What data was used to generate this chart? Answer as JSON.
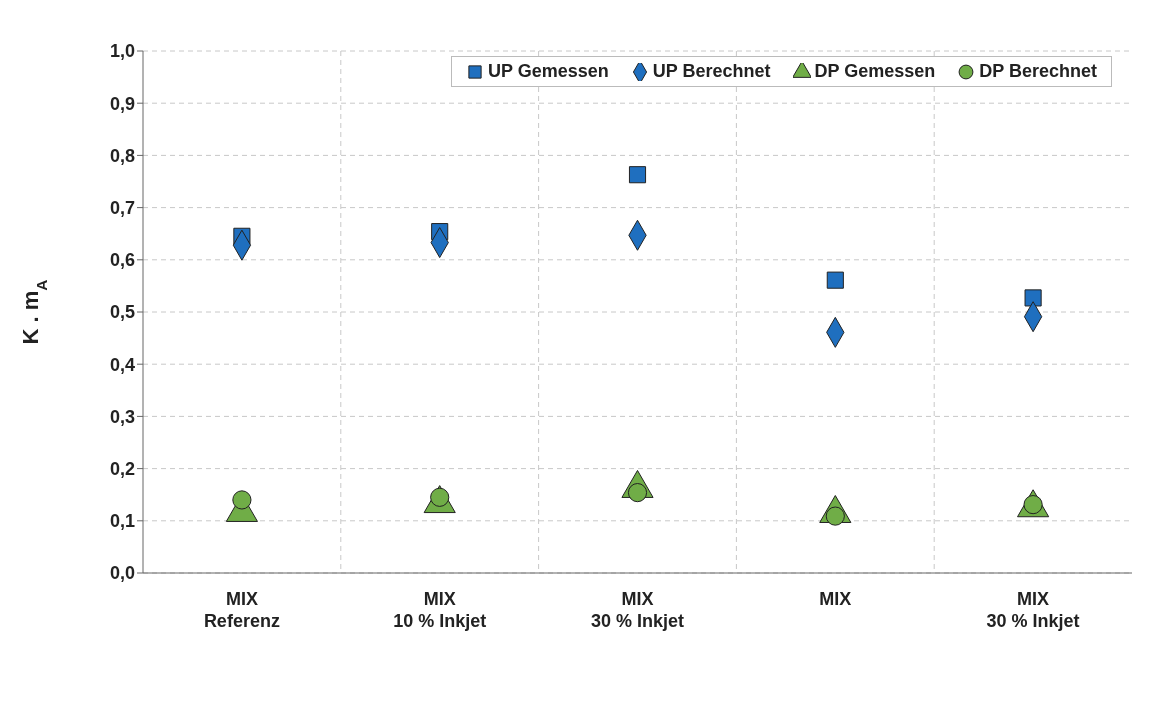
{
  "chart_data": {
    "type": "scatter",
    "ylabel": "K . m$_{A}$",
    "categories": [
      "MIX\nReferenz",
      "MIX\n10 % Inkjet",
      "MIX\n30 % Inkjet",
      "MIX",
      "MIX\n30 % Inkjet"
    ],
    "series": [
      {
        "name": "UP Gemessen",
        "color": "#1f6fbf",
        "marker": "square",
        "values": [
          0.645,
          0.654,
          0.763,
          0.561,
          0.527
        ]
      },
      {
        "name": "UP Berechnet",
        "color": "#1f6fbf",
        "marker": "diamond",
        "values": [
          0.628,
          0.633,
          0.647,
          0.461,
          0.491
        ]
      },
      {
        "name": "DP Gemessen",
        "color": "#70ad47",
        "marker": "triangle",
        "values": [
          0.116,
          0.133,
          0.162,
          0.114,
          0.125
        ]
      },
      {
        "name": "DP Berechnet",
        "color": "#70ad47",
        "marker": "circle",
        "values": [
          0.14,
          0.145,
          0.154,
          0.109,
          0.131
        ]
      }
    ],
    "ylim": [
      0,
      1
    ],
    "yticks": [
      {
        "value": 0,
        "label": "0,0"
      },
      {
        "value": 0.1,
        "label": "0,1"
      },
      {
        "value": 0.2,
        "label": "0,2"
      },
      {
        "value": 0.3,
        "label": "0,3"
      },
      {
        "value": 0.4,
        "label": "0,4"
      },
      {
        "value": 0.5,
        "label": "0,5"
      },
      {
        "value": 0.6,
        "label": "0,6"
      },
      {
        "value": 0.7,
        "label": "0,7"
      },
      {
        "value": 0.8,
        "label": "0,8"
      },
      {
        "value": 0.9,
        "label": "0,9"
      },
      {
        "value": 1,
        "label": "1,0"
      }
    ],
    "grid": true,
    "legend": "top right"
  }
}
